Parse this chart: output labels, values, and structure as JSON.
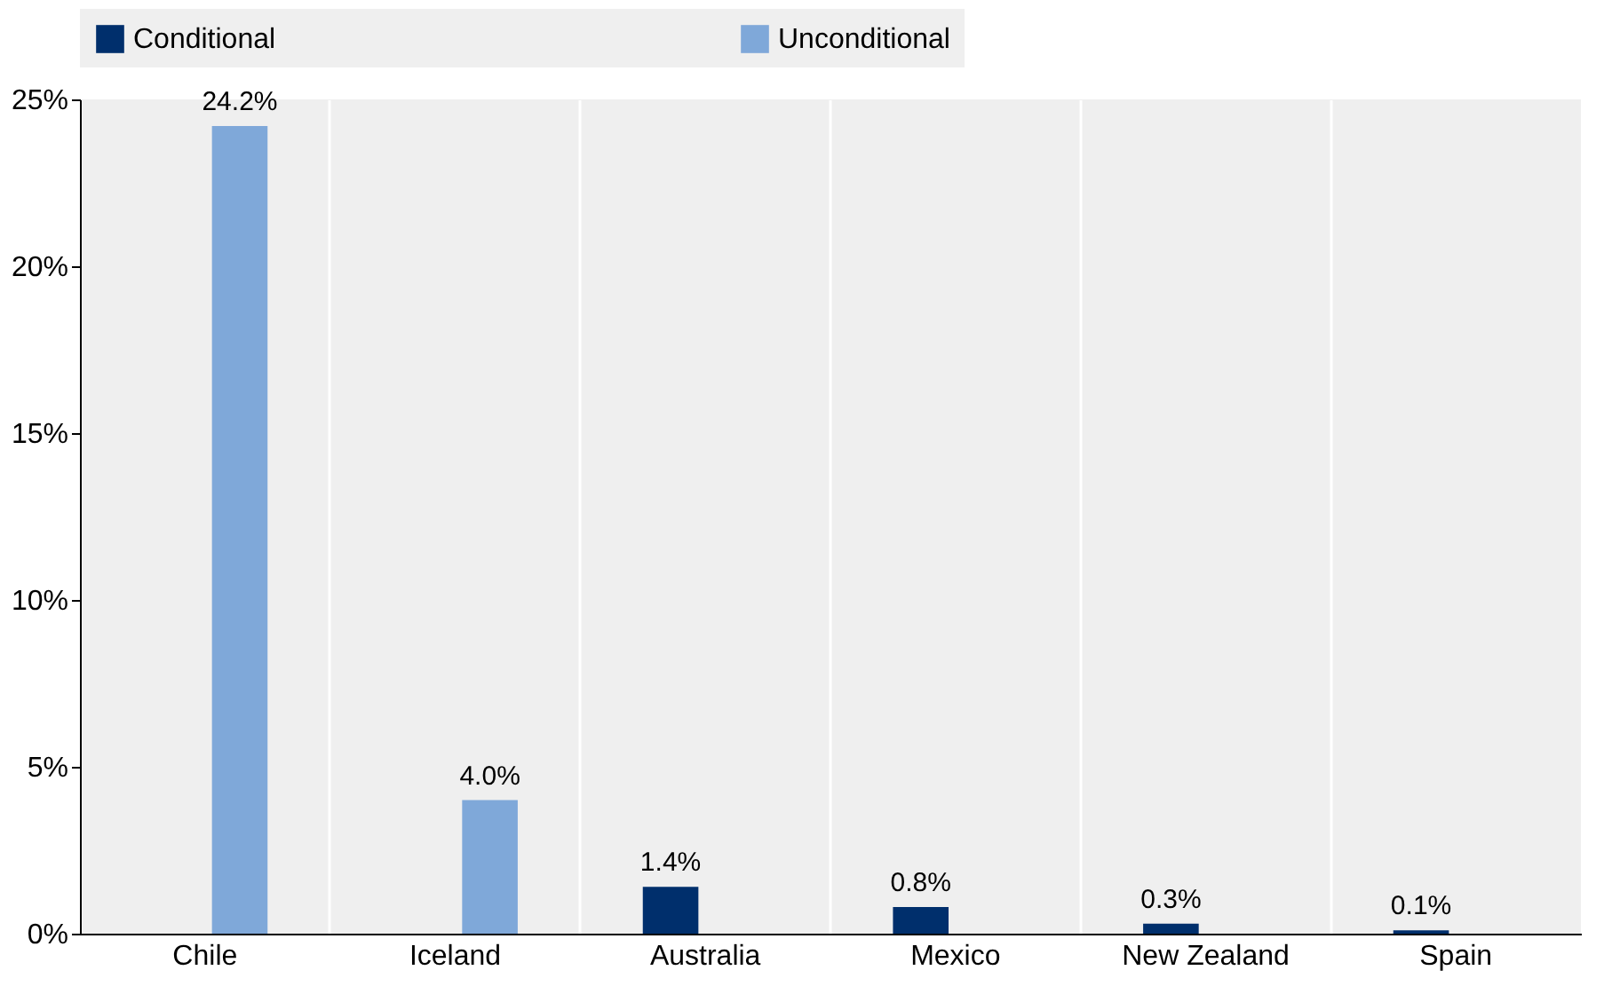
{
  "chart_data": {
    "type": "bar",
    "categories": [
      "Chile",
      "Iceland",
      "Australia",
      "Mexico",
      "New Zealand",
      "Spain"
    ],
    "series": [
      {
        "name": "Conditional",
        "color": "#002f6c",
        "values": [
          null,
          null,
          1.4,
          0.8,
          0.3,
          0.1
        ],
        "value_labels": [
          null,
          null,
          "1.4%",
          "0.8%",
          "0.3%",
          "0.1%"
        ]
      },
      {
        "name": "Unconditional",
        "color": "#7fa8d9",
        "values": [
          24.2,
          4.0,
          null,
          null,
          null,
          null
        ],
        "value_labels": [
          "24.2%",
          "4.0%",
          null,
          null,
          null,
          null
        ]
      }
    ],
    "ylim": [
      0,
      25
    ],
    "yticks": [
      {
        "value": 0,
        "label": "0%"
      },
      {
        "value": 5,
        "label": "5%"
      },
      {
        "value": 10,
        "label": "10%"
      },
      {
        "value": 15,
        "label": "15%"
      },
      {
        "value": 20,
        "label": "20%"
      },
      {
        "value": 25,
        "label": "25%"
      }
    ],
    "grid": "x",
    "legend": "top"
  }
}
